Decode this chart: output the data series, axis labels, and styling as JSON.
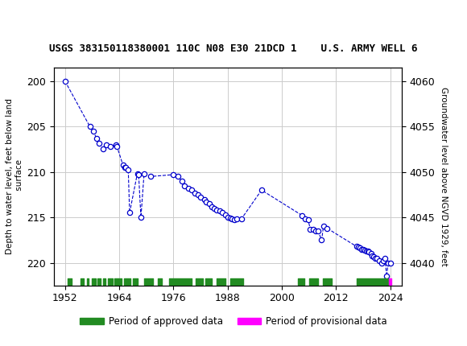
{
  "title": "USGS 383150118380001 110C N08 E30 21DCD 1    U.S. ARMY WELL 6",
  "ylabel_left": "Depth to water level, feet below land\n surface",
  "ylabel_right": "Groundwater level above NGVD 1929, feet",
  "ylim_left": [
    222.5,
    198.5
  ],
  "ylim_right": [
    4037.5,
    4061.5
  ],
  "xlim": [
    1949.5,
    2026.5
  ],
  "xticks": [
    1952,
    1964,
    1976,
    1988,
    2000,
    2012,
    2024
  ],
  "yticks_left": [
    200,
    205,
    210,
    215,
    220
  ],
  "yticks_right": [
    4040,
    4045,
    4050,
    4055,
    4060
  ],
  "grid_color": "#cccccc",
  "line_color": "#0000cc",
  "marker_color": "#0000cc",
  "background_color": "#ffffff",
  "header_color": "#1a6b3c",
  "data_points": [
    [
      1952.0,
      200.0
    ],
    [
      1957.5,
      205.0
    ],
    [
      1958.2,
      205.5
    ],
    [
      1959.0,
      206.3
    ],
    [
      1959.5,
      206.8
    ],
    [
      1960.5,
      207.5
    ],
    [
      1961.2,
      207.0
    ],
    [
      1962.0,
      207.2
    ],
    [
      1963.2,
      207.0
    ],
    [
      1963.5,
      207.2
    ],
    [
      1964.8,
      209.2
    ],
    [
      1965.2,
      209.5
    ],
    [
      1965.5,
      209.5
    ],
    [
      1966.0,
      209.8
    ],
    [
      1966.3,
      214.5
    ],
    [
      1968.0,
      210.2
    ],
    [
      1968.3,
      210.3
    ],
    [
      1968.8,
      215.0
    ],
    [
      1969.5,
      210.2
    ],
    [
      1971.0,
      210.5
    ],
    [
      1976.0,
      210.3
    ],
    [
      1977.0,
      210.5
    ],
    [
      1977.8,
      211.0
    ],
    [
      1978.5,
      211.5
    ],
    [
      1979.3,
      211.8
    ],
    [
      1980.0,
      212.0
    ],
    [
      1980.8,
      212.3
    ],
    [
      1981.5,
      212.5
    ],
    [
      1982.0,
      212.8
    ],
    [
      1982.8,
      213.0
    ],
    [
      1983.3,
      213.3
    ],
    [
      1984.0,
      213.5
    ],
    [
      1984.5,
      213.8
    ],
    [
      1985.0,
      214.0
    ],
    [
      1985.5,
      214.2
    ],
    [
      1986.2,
      214.3
    ],
    [
      1986.8,
      214.5
    ],
    [
      1987.5,
      214.7
    ],
    [
      1988.0,
      215.0
    ],
    [
      1988.5,
      215.1
    ],
    [
      1989.0,
      215.2
    ],
    [
      1989.5,
      215.3
    ],
    [
      1990.0,
      215.2
    ],
    [
      1991.0,
      215.2
    ],
    [
      1995.5,
      212.0
    ],
    [
      2004.5,
      214.8
    ],
    [
      2005.2,
      215.2
    ],
    [
      2005.8,
      215.3
    ],
    [
      2006.3,
      216.3
    ],
    [
      2007.0,
      216.3
    ],
    [
      2007.5,
      216.5
    ],
    [
      2008.0,
      216.5
    ],
    [
      2008.8,
      217.5
    ],
    [
      2009.2,
      216.0
    ],
    [
      2010.0,
      216.2
    ],
    [
      2016.5,
      218.2
    ],
    [
      2017.0,
      218.3
    ],
    [
      2017.3,
      218.4
    ],
    [
      2017.7,
      218.5
    ],
    [
      2018.0,
      218.5
    ],
    [
      2018.3,
      218.6
    ],
    [
      2018.7,
      218.7
    ],
    [
      2019.0,
      218.7
    ],
    [
      2019.3,
      218.8
    ],
    [
      2019.7,
      219.0
    ],
    [
      2020.0,
      219.2
    ],
    [
      2020.3,
      219.3
    ],
    [
      2020.7,
      219.5
    ],
    [
      2021.0,
      219.5
    ],
    [
      2021.5,
      219.8
    ],
    [
      2022.0,
      220.0
    ],
    [
      2022.5,
      219.8
    ],
    [
      2022.8,
      219.5
    ],
    [
      2023.2,
      221.5
    ],
    [
      2023.5,
      220.0
    ],
    [
      2024.0,
      220.0
    ]
  ],
  "approved_periods": [
    [
      1952.5,
      1953.5
    ],
    [
      1955.5,
      1956.2
    ],
    [
      1956.8,
      1957.2
    ],
    [
      1958.0,
      1958.8
    ],
    [
      1959.2,
      1959.8
    ],
    [
      1960.5,
      1961.0
    ],
    [
      1961.5,
      1962.5
    ],
    [
      1963.0,
      1964.5
    ],
    [
      1965.0,
      1966.5
    ],
    [
      1967.0,
      1968.0
    ],
    [
      1969.5,
      1971.5
    ],
    [
      1972.5,
      1973.5
    ],
    [
      1975.0,
      1980.0
    ],
    [
      1981.0,
      1982.5
    ],
    [
      1983.0,
      1984.5
    ],
    [
      1985.5,
      1987.5
    ],
    [
      1988.5,
      1991.5
    ],
    [
      2003.5,
      2005.0
    ],
    [
      2006.0,
      2008.0
    ],
    [
      2009.0,
      2011.0
    ],
    [
      2016.5,
      2023.5
    ]
  ],
  "provisional_periods": [
    [
      2023.6,
      2024.2
    ]
  ],
  "legend_approved_color": "#228B22",
  "legend_provisional_color": "#FF00FF",
  "title_fontsize": 9,
  "tick_fontsize": 9,
  "ylabel_fontsize": 7.5
}
